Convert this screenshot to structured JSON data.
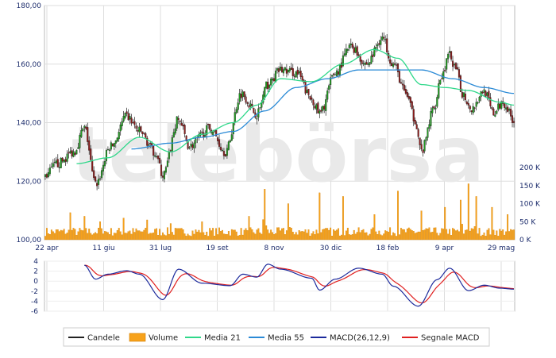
{
  "watermark": "telebörsa",
  "colors": {
    "candle_up": "#1f9a1f",
    "candle_down": "#8a1a1a",
    "wick": "#222222",
    "volume_fill": "#f7a21b",
    "volume_stroke": "#d17e00",
    "ma21": "#2fd88a",
    "ma55": "#2a8ad6",
    "macd": "#1c2a9c",
    "macd_signal": "#e02020",
    "grid": "#dddddd",
    "tick_text": "#1b2b6b"
  },
  "chart_data": [
    {
      "type": "candlestick",
      "x_labels": [
        "22 apr",
        "11 giu",
        "31 lug",
        "19 set",
        "8 nov",
        "30 dic",
        "18 feb",
        "9 apr",
        "29 mag"
      ],
      "y_ticks": [
        "100,00",
        "120,00",
        "140,00",
        "160,00",
        "180,00"
      ],
      "ylim": [
        100,
        180
      ],
      "n_sessions": 300,
      "close_anchors": [
        [
          0,
          122
        ],
        [
          8,
          126
        ],
        [
          18,
          130
        ],
        [
          25,
          138
        ],
        [
          32,
          119
        ],
        [
          42,
          132
        ],
        [
          52,
          142
        ],
        [
          60,
          137
        ],
        [
          70,
          130
        ],
        [
          75,
          122
        ],
        [
          85,
          141
        ],
        [
          92,
          132
        ],
        [
          105,
          138
        ],
        [
          115,
          130
        ],
        [
          125,
          150
        ],
        [
          135,
          143
        ],
        [
          142,
          153
        ],
        [
          150,
          158
        ],
        [
          160,
          157
        ],
        [
          170,
          148
        ],
        [
          175,
          143
        ],
        [
          185,
          157
        ],
        [
          195,
          166
        ],
        [
          205,
          160
        ],
        [
          215,
          169
        ],
        [
          222,
          160
        ],
        [
          230,
          150
        ],
        [
          236,
          141
        ],
        [
          240,
          130
        ],
        [
          248,
          145
        ],
        [
          252,
          155
        ],
        [
          258,
          163
        ],
        [
          262,
          158
        ],
        [
          266,
          150
        ],
        [
          272,
          145
        ],
        [
          280,
          151
        ],
        [
          286,
          143
        ],
        [
          292,
          147
        ],
        [
          299,
          141
        ]
      ],
      "ma21_anchors": [
        [
          20,
          126
        ],
        [
          40,
          128
        ],
        [
          60,
          135
        ],
        [
          80,
          130
        ],
        [
          100,
          136
        ],
        [
          120,
          140
        ],
        [
          135,
          146
        ],
        [
          150,
          155
        ],
        [
          170,
          154
        ],
        [
          190,
          160
        ],
        [
          210,
          165
        ],
        [
          225,
          162
        ],
        [
          240,
          153
        ],
        [
          255,
          152
        ],
        [
          270,
          151
        ],
        [
          290,
          147
        ],
        [
          299,
          146
        ]
      ],
      "ma55_anchors": [
        [
          55,
          131
        ],
        [
          80,
          133
        ],
        [
          100,
          135
        ],
        [
          120,
          137
        ],
        [
          140,
          144
        ],
        [
          160,
          152
        ],
        [
          180,
          155
        ],
        [
          200,
          158
        ],
        [
          215,
          158
        ],
        [
          240,
          158
        ],
        [
          260,
          155
        ],
        [
          280,
          152
        ],
        [
          299,
          150
        ]
      ]
    },
    {
      "type": "bar",
      "name": "Volume",
      "y_ticks": [
        "0 K",
        "50 K",
        "100 K",
        "150 K",
        "200 K"
      ],
      "ylim": [
        0,
        200
      ],
      "baseline_k": 20,
      "spikes_k": [
        [
          16,
          75
        ],
        [
          25,
          65
        ],
        [
          35,
          50
        ],
        [
          50,
          60
        ],
        [
          65,
          55
        ],
        [
          80,
          45
        ],
        [
          100,
          50
        ],
        [
          130,
          65
        ],
        [
          140,
          140
        ],
        [
          155,
          100
        ],
        [
          175,
          130
        ],
        [
          190,
          120
        ],
        [
          210,
          70
        ],
        [
          225,
          135
        ],
        [
          240,
          80
        ],
        [
          255,
          90
        ],
        [
          265,
          110
        ],
        [
          270,
          155
        ],
        [
          275,
          120
        ],
        [
          285,
          90
        ],
        [
          295,
          70
        ]
      ]
    },
    {
      "type": "line",
      "name": "MACD",
      "y_ticks": [
        "4",
        "2",
        "0",
        "-2",
        "-4",
        "-6"
      ],
      "ylim": [
        -6,
        4
      ],
      "macd_anchors": [
        [
          25,
          3.2
        ],
        [
          32,
          0.4
        ],
        [
          40,
          1.4
        ],
        [
          52,
          2.1
        ],
        [
          60,
          1.4
        ],
        [
          75,
          -3.7
        ],
        [
          85,
          2.4
        ],
        [
          100,
          -0.4
        ],
        [
          118,
          -0.9
        ],
        [
          126,
          1.4
        ],
        [
          135,
          0.8
        ],
        [
          142,
          3.4
        ],
        [
          150,
          2.4
        ],
        [
          170,
          0.6
        ],
        [
          175,
          -1.8
        ],
        [
          185,
          0.4
        ],
        [
          200,
          2.6
        ],
        [
          215,
          1.4
        ],
        [
          222,
          -1.0
        ],
        [
          238,
          -5.0
        ],
        [
          250,
          0.3
        ],
        [
          258,
          2.6
        ],
        [
          270,
          -1.9
        ],
        [
          280,
          -0.8
        ],
        [
          290,
          -1.4
        ],
        [
          299,
          -1.6
        ]
      ]
    }
  ],
  "legend": [
    {
      "label": "Candele",
      "kind": "line",
      "color": "#222222"
    },
    {
      "label": "Volume",
      "kind": "box",
      "color": "#f7a21b"
    },
    {
      "label": "Media 21",
      "kind": "line",
      "color": "#2fd88a"
    },
    {
      "label": "Media 55",
      "kind": "line",
      "color": "#2a8ad6"
    },
    {
      "label": "MACD(26,12,9)",
      "kind": "line",
      "color": "#1c2a9c"
    },
    {
      "label": "Segnale MACD",
      "kind": "line",
      "color": "#e02020"
    }
  ]
}
